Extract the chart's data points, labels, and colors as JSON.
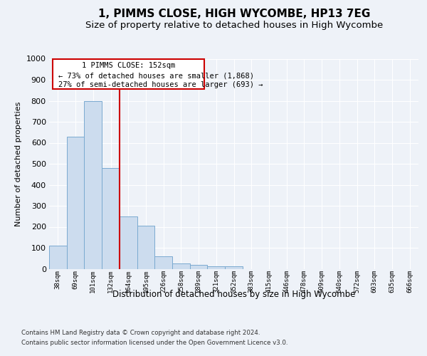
{
  "title": "1, PIMMS CLOSE, HIGH WYCOMBE, HP13 7EG",
  "subtitle": "Size of property relative to detached houses in High Wycombe",
  "xlabel": "Distribution of detached houses by size in High Wycombe",
  "ylabel": "Number of detached properties",
  "footer_line1": "Contains HM Land Registry data © Crown copyright and database right 2024.",
  "footer_line2": "Contains public sector information licensed under the Open Government Licence v3.0.",
  "categories": [
    "38sqm",
    "69sqm",
    "101sqm",
    "132sqm",
    "164sqm",
    "195sqm",
    "226sqm",
    "258sqm",
    "289sqm",
    "321sqm",
    "352sqm",
    "383sqm",
    "415sqm",
    "446sqm",
    "478sqm",
    "509sqm",
    "540sqm",
    "572sqm",
    "603sqm",
    "635sqm",
    "666sqm"
  ],
  "values": [
    110,
    630,
    800,
    480,
    250,
    205,
    60,
    25,
    18,
    12,
    12,
    0,
    0,
    0,
    0,
    0,
    0,
    0,
    0,
    0,
    0
  ],
  "bar_color": "#ccdcee",
  "bar_edge_color": "#7aaad0",
  "red_line_label": "1 PIMMS CLOSE: 152sqm",
  "annotation_line2": "← 73% of detached houses are smaller (1,868)",
  "annotation_line3": "27% of semi-detached houses are larger (693) →",
  "ylim": [
    0,
    1000
  ],
  "yticks": [
    0,
    100,
    200,
    300,
    400,
    500,
    600,
    700,
    800,
    900,
    1000
  ],
  "bg_color": "#eef2f8",
  "axes_bg_color": "#eef2f8",
  "grid_color": "#ffffff",
  "title_fontsize": 11,
  "subtitle_fontsize": 9.5,
  "annotation_box_color": "#ffffff",
  "annotation_box_edge": "#cc0000"
}
